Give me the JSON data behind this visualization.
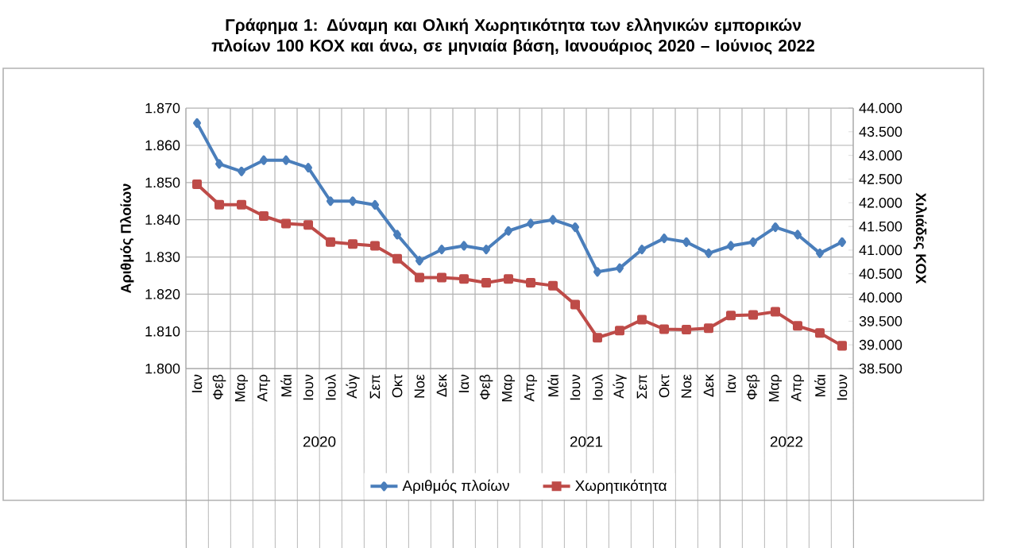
{
  "chart_data": {
    "type": "line",
    "title": "**Γράφημα 1: Δύναμη και Ολική Χωρητικότητα των ελληνικών εμπορικών πλοίων 100 ΚΟΧ και άνω, σε μηνιαία βάση, Ιανουάριος 2020 – Ιούνιος 2022**",
    "ylabel": "Αριθμός Πλοίων",
    "y2label": "Χιλιάδες ΚΟΧ",
    "categories": [
      "Ιαν",
      "Φεβ",
      "Μαρ",
      "Απρ",
      "Μάι",
      "Ιουν",
      "Ιουλ",
      "Αύγ",
      "Σεπ",
      "Οκτ",
      "Νοε",
      "Δεκ",
      "Ιαν",
      "Φεβ",
      "Μαρ",
      "Απρ",
      "Μάι",
      "Ιουν",
      "Ιουλ",
      "Αύγ",
      "Σεπ",
      "Οκτ",
      "Νοε",
      "Δεκ",
      "Ιαν",
      "Φεβ",
      "Μαρ",
      "Απρ",
      "Μάι",
      "Ιουν"
    ],
    "annotations": [
      "2020",
      "2021",
      "2022"
    ],
    "series": [
      {
        "name": "Αριθμός πλοίων",
        "color": "#4a7ebb",
        "marker": "diamond",
        "values": [
          1866,
          1855,
          1853,
          1856,
          1856,
          1854,
          1845,
          1845,
          1844,
          1836,
          1829,
          1832,
          1833,
          1832,
          1837,
          1839,
          1840,
          1838,
          1826,
          1827,
          1832,
          1835,
          1834,
          1831,
          1833,
          1834,
          1838,
          1836,
          1831,
          1834
        ]
      },
      {
        "name": "Χωρητικότητα",
        "color": "#be4b48",
        "marker": "square",
        "axis": "y2",
        "values": [
          42390,
          41960,
          41960,
          41720,
          41560,
          41530,
          41170,
          41130,
          41090,
          40820,
          40420,
          40420,
          40390,
          40310,
          40390,
          40310,
          40250,
          39850,
          39150,
          39300,
          39530,
          39330,
          39320,
          39350,
          39620,
          39630,
          39700,
          39400,
          39250,
          38980
        ]
      }
    ],
    "ylim": [
      1800,
      1870
    ],
    "yticks": [
      {
        "value": 1800,
        "label": "1.800"
      },
      {
        "value": 1810,
        "label": "1.810"
      },
      {
        "value": 1820,
        "label": "1.820"
      },
      {
        "value": 1830,
        "label": "1.830"
      },
      {
        "value": 1840,
        "label": "1.840"
      },
      {
        "value": 1850,
        "label": "1.850"
      },
      {
        "value": 1860,
        "label": "1.860"
      },
      {
        "value": 1870,
        "label": "1.870"
      }
    ],
    "y2lim": [
      38500,
      44000
    ],
    "y2ticks": [
      {
        "value": 38500,
        "label": "38.500"
      },
      {
        "value": 39000,
        "label": "39.000"
      },
      {
        "value": 39500,
        "label": "39.500"
      },
      {
        "value": 40000,
        "label": "40.000"
      },
      {
        "value": 40500,
        "label": "40.500"
      },
      {
        "value": 41000,
        "label": "41.000"
      },
      {
        "value": 41500,
        "label": "41.500"
      },
      {
        "value": 42000,
        "label": "42.000"
      },
      {
        "value": 42500,
        "label": "42.500"
      },
      {
        "value": 43000,
        "label": "43.000"
      },
      {
        "value": 43500,
        "label": "43.500"
      },
      {
        "value": 44000,
        "label": "44.000"
      }
    ],
    "grid": true,
    "legend": "bottom",
    "line_style": "solid"
  }
}
